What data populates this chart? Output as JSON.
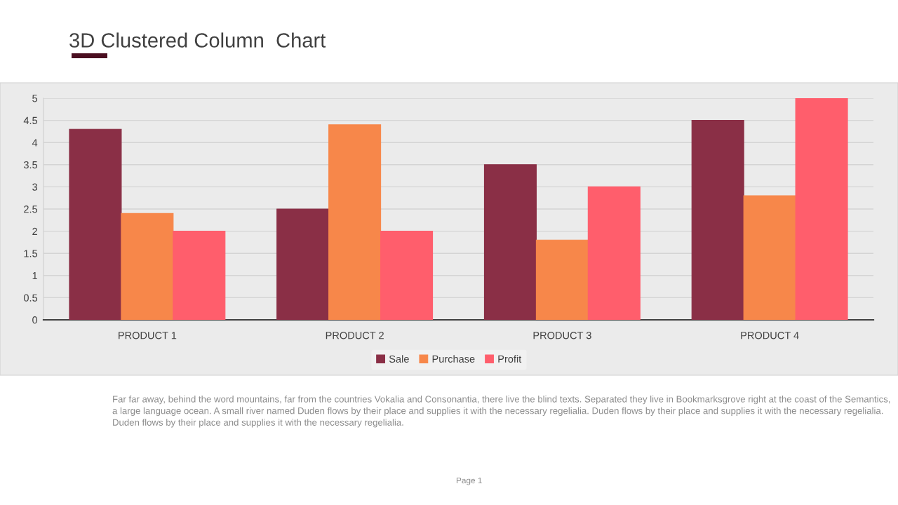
{
  "chart_data": {
    "type": "bar",
    "title": "3D Clustered Column  Chart",
    "categories": [
      "PRODUCT 1",
      "PRODUCT 2",
      "PRODUCT 3",
      "PRODUCT 4"
    ],
    "series": [
      {
        "name": "Sale",
        "color": "#8a2f46",
        "values": [
          4.3,
          2.5,
          3.5,
          4.5
        ]
      },
      {
        "name": "Purchase",
        "color": "#f7874a",
        "values": [
          2.4,
          4.4,
          1.8,
          2.8
        ]
      },
      {
        "name": "Profit",
        "color": "#ff5e6c",
        "values": [
          2,
          2,
          3,
          5
        ]
      }
    ],
    "ylim": [
      0,
      5
    ],
    "yticks": [
      0,
      0.5,
      1,
      1.5,
      2,
      2.5,
      3,
      3.5,
      4,
      4.5,
      5
    ],
    "grid": "y",
    "legend": "bottom",
    "annotations": [
      "Far far away, behind the word mountains, far from the countries Vokalia and Consonantia, there live the blind texts. Separated they live in Bookmarksgrove right at the coast of the Semantics, a large language ocean. A small river named Duden flows by their place and supplies it with the necessary regelialia. Duden flows by their place and supplies it with the necessary regelialia. Duden flows by their place and supplies it with the necessary regelialia.",
      "Page 1"
    ]
  }
}
